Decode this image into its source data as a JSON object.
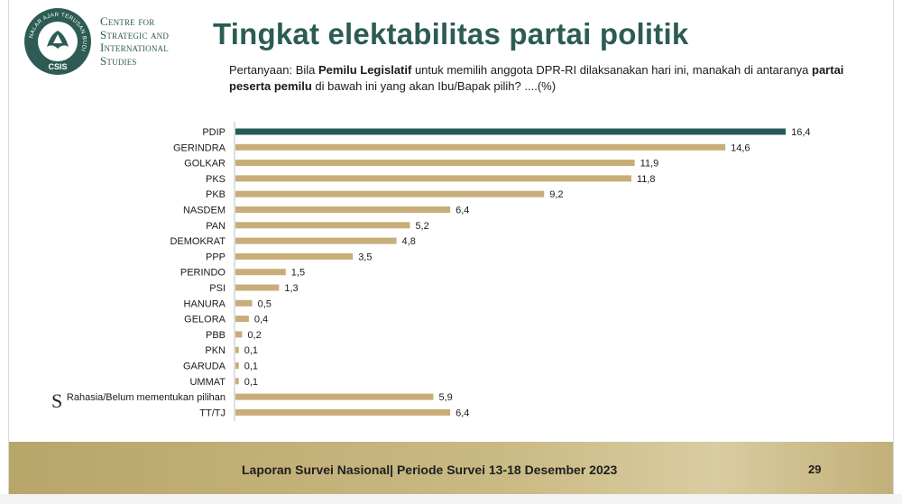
{
  "header": {
    "org_name_lines": [
      "Centre for",
      "Strategic and",
      "International",
      "Studies"
    ],
    "logo": {
      "ring_text": "NALAR AJAR TERUSAN BUDI",
      "abbrev": "CSIS",
      "color": "#2c5c54"
    },
    "title": "Tingkat elektabilitas partai politik"
  },
  "question": {
    "part1": "Pertanyaan: Bila ",
    "bold1": "Pemilu Legislatif",
    "part2": " untuk memilih anggota DPR-RI dilaksanakan hari ini, manakah di antaranya ",
    "bold2": "partai peserta pemilu",
    "part3": " di bawah ini yang akan Ibu/Bapak pilih? ....(%)"
  },
  "chart_data": {
    "type": "bar",
    "orientation": "horizontal",
    "categories": [
      "PDIP",
      "GERINDRA",
      "GOLKAR",
      "PKS",
      "PKB",
      "NASDEM",
      "PAN",
      "DEMOKRAT",
      "PPP",
      "PERINDO",
      "PSI",
      "HANURA",
      "GELORA",
      "PBB",
      "PKN",
      "GARUDA",
      "UMMAT",
      "Rahasia/Belum mementukan pilihan",
      "TT/TJ"
    ],
    "values": [
      16.4,
      14.6,
      11.9,
      11.8,
      9.2,
      6.4,
      5.2,
      4.8,
      3.5,
      1.5,
      1.3,
      0.5,
      0.4,
      0.2,
      0.1,
      0.1,
      0.1,
      5.9,
      6.4
    ],
    "value_labels": [
      "16,4",
      "14,6",
      "11,9",
      "11,8",
      "9,2",
      "6,4",
      "5,2",
      "4,8",
      "3,5",
      "1,5",
      "1,3",
      "0,5",
      "0,4",
      "0,2",
      "0,1",
      "0,1",
      "0,1",
      "5,9",
      "6,4"
    ],
    "highlight_index": 0,
    "colors": {
      "highlight": "#265a57",
      "default": "#c8ad78",
      "axis": "#bfbfbf"
    }
  },
  "stray_char": "S",
  "footer": {
    "text": "Laporan Survei Nasional| Periode Survei 13-18 Desember 2023",
    "page": "29"
  }
}
